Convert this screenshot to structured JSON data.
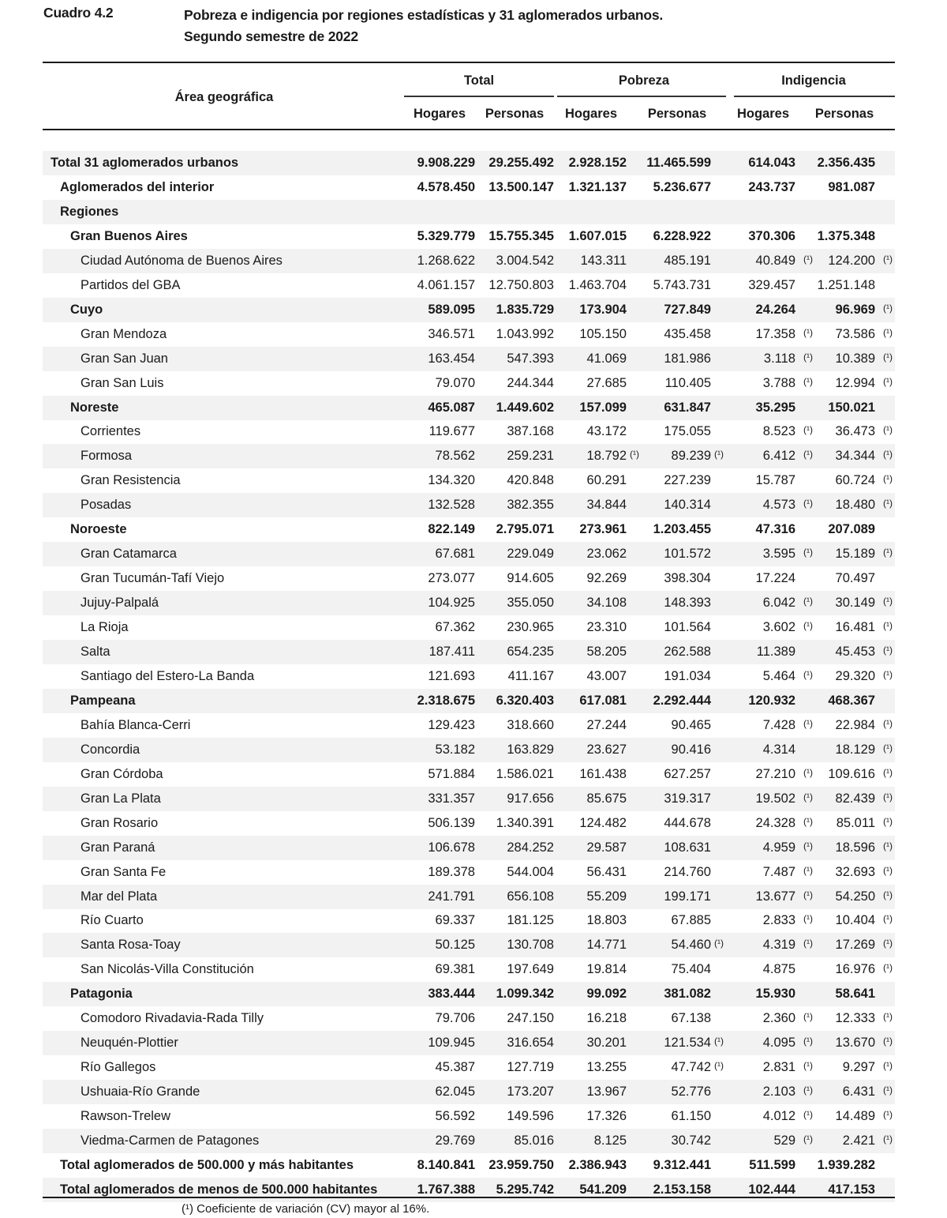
{
  "caption": "Cuadro 4.2",
  "title_line1": "Pobreza e indigencia por regiones estadísticas y 31 aglomerados urbanos.",
  "title_line2": "Segundo semestre de 2022",
  "headers": {
    "area": "Área geográfica",
    "groups": [
      "Total",
      "Pobreza",
      "Indigencia"
    ],
    "sub": [
      "Hogares",
      "Personas",
      "Hogares",
      "Personas",
      "Hogares",
      "Personas"
    ]
  },
  "marker": "(¹)",
  "footnote": "(¹) Coeficiente de variación (CV) mayor al 16%.",
  "rows": [
    {
      "label": "Total 31 aglomerados urbanos",
      "level": 0,
      "bold": true,
      "values": [
        "9.908.229",
        "29.255.492",
        "2.928.152",
        "11.465.599",
        "614.043",
        "2.356.435"
      ],
      "marks": [
        false,
        false,
        false,
        false,
        false,
        false
      ]
    },
    {
      "label": "Aglomerados del interior",
      "level": 1,
      "bold": true,
      "values": [
        "4.578.450",
        "13.500.147",
        "1.321.137",
        "5.236.677",
        "243.737",
        "981.087"
      ],
      "marks": [
        false,
        false,
        false,
        false,
        false,
        false
      ]
    },
    {
      "label": "Regiones",
      "level": 1,
      "bold": true,
      "values": [
        "",
        "",
        "",
        "",
        "",
        ""
      ],
      "marks": [
        false,
        false,
        false,
        false,
        false,
        false
      ]
    },
    {
      "label": "Gran Buenos Aires",
      "level": 2,
      "bold": true,
      "values": [
        "5.329.779",
        "15.755.345",
        "1.607.015",
        "6.228.922",
        "370.306",
        "1.375.348"
      ],
      "marks": [
        false,
        false,
        false,
        false,
        false,
        false
      ]
    },
    {
      "label": "Ciudad Autónoma de Buenos Aires",
      "level": 3,
      "bold": false,
      "values": [
        "1.268.622",
        "3.004.542",
        "143.311",
        "485.191",
        "40.849",
        "124.200"
      ],
      "marks": [
        false,
        false,
        false,
        false,
        true,
        true
      ]
    },
    {
      "label": "Partidos del GBA",
      "level": 3,
      "bold": false,
      "values": [
        "4.061.157",
        "12.750.803",
        "1.463.704",
        "5.743.731",
        "329.457",
        "1.251.148"
      ],
      "marks": [
        false,
        false,
        false,
        false,
        false,
        false
      ]
    },
    {
      "label": "Cuyo",
      "level": 2,
      "bold": true,
      "values": [
        "589.095",
        "1.835.729",
        "173.904",
        "727.849",
        "24.264",
        "96.969"
      ],
      "marks": [
        false,
        false,
        false,
        false,
        false,
        true
      ]
    },
    {
      "label": "Gran Mendoza",
      "level": 3,
      "bold": false,
      "values": [
        "346.571",
        "1.043.992",
        "105.150",
        "435.458",
        "17.358",
        "73.586"
      ],
      "marks": [
        false,
        false,
        false,
        false,
        true,
        true
      ]
    },
    {
      "label": "Gran San Juan",
      "level": 3,
      "bold": false,
      "values": [
        "163.454",
        "547.393",
        "41.069",
        "181.986",
        "3.118",
        "10.389"
      ],
      "marks": [
        false,
        false,
        false,
        false,
        true,
        true
      ]
    },
    {
      "label": "Gran San Luis",
      "level": 3,
      "bold": false,
      "values": [
        "79.070",
        "244.344",
        "27.685",
        "110.405",
        "3.788",
        "12.994"
      ],
      "marks": [
        false,
        false,
        false,
        false,
        true,
        true
      ]
    },
    {
      "label": "Noreste",
      "level": 2,
      "bold": true,
      "values": [
        "465.087",
        "1.449.602",
        "157.099",
        "631.847",
        "35.295",
        "150.021"
      ],
      "marks": [
        false,
        false,
        false,
        false,
        false,
        false
      ]
    },
    {
      "label": "Corrientes",
      "level": 3,
      "bold": false,
      "values": [
        "119.677",
        "387.168",
        "43.172",
        "175.055",
        "8.523",
        "36.473"
      ],
      "marks": [
        false,
        false,
        false,
        false,
        true,
        true
      ]
    },
    {
      "label": "Formosa",
      "level": 3,
      "bold": false,
      "values": [
        "78.562",
        "259.231",
        "18.792",
        "89.239",
        "6.412",
        "34.344"
      ],
      "marks": [
        false,
        false,
        true,
        true,
        true,
        true
      ]
    },
    {
      "label": "Gran Resistencia",
      "level": 3,
      "bold": false,
      "values": [
        "134.320",
        "420.848",
        "60.291",
        "227.239",
        "15.787",
        "60.724"
      ],
      "marks": [
        false,
        false,
        false,
        false,
        false,
        true
      ]
    },
    {
      "label": "Posadas",
      "level": 3,
      "bold": false,
      "values": [
        "132.528",
        "382.355",
        "34.844",
        "140.314",
        "4.573",
        "18.480"
      ],
      "marks": [
        false,
        false,
        false,
        false,
        true,
        true
      ]
    },
    {
      "label": "Noroeste",
      "level": 2,
      "bold": true,
      "values": [
        "822.149",
        "2.795.071",
        "273.961",
        "1.203.455",
        "47.316",
        "207.089"
      ],
      "marks": [
        false,
        false,
        false,
        false,
        false,
        false
      ]
    },
    {
      "label": "Gran Catamarca",
      "level": 3,
      "bold": false,
      "values": [
        "67.681",
        "229.049",
        "23.062",
        "101.572",
        "3.595",
        "15.189"
      ],
      "marks": [
        false,
        false,
        false,
        false,
        true,
        true
      ]
    },
    {
      "label": "Gran Tucumán-Tafí Viejo",
      "level": 3,
      "bold": false,
      "values": [
        "273.077",
        "914.605",
        "92.269",
        "398.304",
        "17.224",
        "70.497"
      ],
      "marks": [
        false,
        false,
        false,
        false,
        false,
        false
      ]
    },
    {
      "label": "Jujuy-Palpalá",
      "level": 3,
      "bold": false,
      "values": [
        "104.925",
        "355.050",
        "34.108",
        "148.393",
        "6.042",
        "30.149"
      ],
      "marks": [
        false,
        false,
        false,
        false,
        true,
        true
      ]
    },
    {
      "label": "La Rioja",
      "level": 3,
      "bold": false,
      "values": [
        "67.362",
        "230.965",
        "23.310",
        "101.564",
        "3.602",
        "16.481"
      ],
      "marks": [
        false,
        false,
        false,
        false,
        true,
        true
      ]
    },
    {
      "label": "Salta",
      "level": 3,
      "bold": false,
      "values": [
        "187.411",
        "654.235",
        "58.205",
        "262.588",
        "11.389",
        "45.453"
      ],
      "marks": [
        false,
        false,
        false,
        false,
        false,
        true
      ]
    },
    {
      "label": "Santiago del Estero-La Banda",
      "level": 3,
      "bold": false,
      "values": [
        "121.693",
        "411.167",
        "43.007",
        "191.034",
        "5.464",
        "29.320"
      ],
      "marks": [
        false,
        false,
        false,
        false,
        true,
        true
      ]
    },
    {
      "label": "Pampeana",
      "level": 2,
      "bold": true,
      "values": [
        "2.318.675",
        "6.320.403",
        "617.081",
        "2.292.444",
        "120.932",
        "468.367"
      ],
      "marks": [
        false,
        false,
        false,
        false,
        false,
        false
      ]
    },
    {
      "label": "Bahía Blanca-Cerri",
      "level": 3,
      "bold": false,
      "values": [
        "129.423",
        "318.660",
        "27.244",
        "90.465",
        "7.428",
        "22.984"
      ],
      "marks": [
        false,
        false,
        false,
        false,
        true,
        true
      ]
    },
    {
      "label": "Concordia",
      "level": 3,
      "bold": false,
      "values": [
        "53.182",
        "163.829",
        "23.627",
        "90.416",
        "4.314",
        "18.129"
      ],
      "marks": [
        false,
        false,
        false,
        false,
        false,
        true
      ]
    },
    {
      "label": "Gran Córdoba",
      "level": 3,
      "bold": false,
      "values": [
        "571.884",
        "1.586.021",
        "161.438",
        "627.257",
        "27.210",
        "109.616"
      ],
      "marks": [
        false,
        false,
        false,
        false,
        true,
        true
      ]
    },
    {
      "label": "Gran La Plata",
      "level": 3,
      "bold": false,
      "values": [
        "331.357",
        "917.656",
        "85.675",
        "319.317",
        "19.502",
        "82.439"
      ],
      "marks": [
        false,
        false,
        false,
        false,
        true,
        true
      ]
    },
    {
      "label": "Gran Rosario",
      "level": 3,
      "bold": false,
      "values": [
        "506.139",
        "1.340.391",
        "124.482",
        "444.678",
        "24.328",
        "85.011"
      ],
      "marks": [
        false,
        false,
        false,
        false,
        true,
        true
      ]
    },
    {
      "label": "Gran Paraná",
      "level": 3,
      "bold": false,
      "values": [
        "106.678",
        "284.252",
        "29.587",
        "108.631",
        "4.959",
        "18.596"
      ],
      "marks": [
        false,
        false,
        false,
        false,
        true,
        true
      ]
    },
    {
      "label": "Gran Santa Fe",
      "level": 3,
      "bold": false,
      "values": [
        "189.378",
        "544.004",
        "56.431",
        "214.760",
        "7.487",
        "32.693"
      ],
      "marks": [
        false,
        false,
        false,
        false,
        true,
        true
      ]
    },
    {
      "label": "Mar del Plata",
      "level": 3,
      "bold": false,
      "values": [
        "241.791",
        "656.108",
        "55.209",
        "199.171",
        "13.677",
        "54.250"
      ],
      "marks": [
        false,
        false,
        false,
        false,
        true,
        true
      ]
    },
    {
      "label": "Río Cuarto",
      "level": 3,
      "bold": false,
      "values": [
        "69.337",
        "181.125",
        "18.803",
        "67.885",
        "2.833",
        "10.404"
      ],
      "marks": [
        false,
        false,
        false,
        false,
        true,
        true
      ]
    },
    {
      "label": "Santa Rosa-Toay",
      "level": 3,
      "bold": false,
      "values": [
        "50.125",
        "130.708",
        "14.771",
        "54.460",
        "4.319",
        "17.269"
      ],
      "marks": [
        false,
        false,
        false,
        true,
        true,
        true
      ]
    },
    {
      "label": "San Nicolás-Villa Constitución",
      "level": 3,
      "bold": false,
      "values": [
        "69.381",
        "197.649",
        "19.814",
        "75.404",
        "4.875",
        "16.976"
      ],
      "marks": [
        false,
        false,
        false,
        false,
        false,
        true
      ]
    },
    {
      "label": "Patagonia",
      "level": 2,
      "bold": true,
      "values": [
        "383.444",
        "1.099.342",
        "99.092",
        "381.082",
        "15.930",
        "58.641"
      ],
      "marks": [
        false,
        false,
        false,
        false,
        false,
        false
      ]
    },
    {
      "label": "Comodoro Rivadavia-Rada Tilly",
      "level": 3,
      "bold": false,
      "values": [
        "79.706",
        "247.150",
        "16.218",
        "67.138",
        "2.360",
        "12.333"
      ],
      "marks": [
        false,
        false,
        false,
        false,
        true,
        true
      ]
    },
    {
      "label": "Neuquén-Plottier",
      "level": 3,
      "bold": false,
      "values": [
        "109.945",
        "316.654",
        "30.201",
        "121.534",
        "4.095",
        "13.670"
      ],
      "marks": [
        false,
        false,
        false,
        true,
        true,
        true
      ]
    },
    {
      "label": "Río Gallegos",
      "level": 3,
      "bold": false,
      "values": [
        "45.387",
        "127.719",
        "13.255",
        "47.742",
        "2.831",
        "9.297"
      ],
      "marks": [
        false,
        false,
        false,
        true,
        true,
        true
      ]
    },
    {
      "label": "Ushuaia-Río Grande",
      "level": 3,
      "bold": false,
      "values": [
        "62.045",
        "173.207",
        "13.967",
        "52.776",
        "2.103",
        "6.431"
      ],
      "marks": [
        false,
        false,
        false,
        false,
        true,
        true
      ]
    },
    {
      "label": "Rawson-Trelew",
      "level": 3,
      "bold": false,
      "values": [
        "56.592",
        "149.596",
        "17.326",
        "61.150",
        "4.012",
        "14.489"
      ],
      "marks": [
        false,
        false,
        false,
        false,
        true,
        true
      ]
    },
    {
      "label": "Viedma-Carmen de Patagones",
      "level": 3,
      "bold": false,
      "values": [
        "29.769",
        "85.016",
        "8.125",
        "30.742",
        "529",
        "2.421"
      ],
      "marks": [
        false,
        false,
        false,
        false,
        true,
        true
      ]
    },
    {
      "label": "Total aglomerados de 500.000 y más habitantes",
      "level": 1,
      "bold": true,
      "values": [
        "8.140.841",
        "23.959.750",
        "2.386.943",
        "9.312.441",
        "511.599",
        "1.939.282"
      ],
      "marks": [
        false,
        false,
        false,
        false,
        false,
        false
      ]
    },
    {
      "label": "Total aglomerados de menos de 500.000 habitantes",
      "level": 1,
      "bold": true,
      "values": [
        "1.767.388",
        "5.295.742",
        "541.209",
        "2.153.158",
        "102.444",
        "417.153"
      ],
      "marks": [
        false,
        false,
        false,
        false,
        false,
        false
      ]
    }
  ]
}
